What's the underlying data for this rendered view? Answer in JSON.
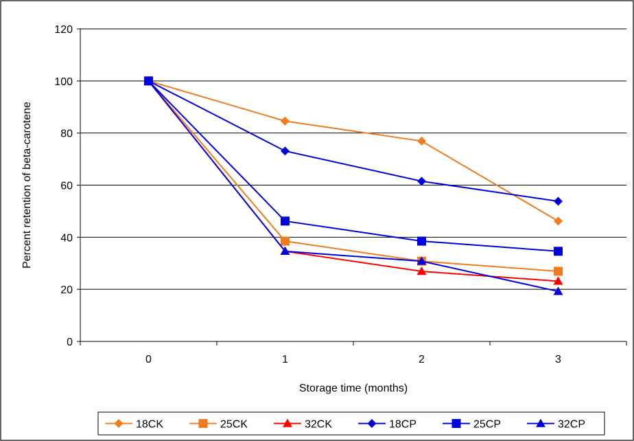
{
  "chart_data": {
    "type": "line",
    "title": "",
    "xlabel": "Storage time (months)",
    "ylabel": "Percent retention of beta-carotene",
    "categories": [
      "0",
      "1",
      "2",
      "3"
    ],
    "ylim": [
      0,
      120
    ],
    "yticks": [
      0,
      20,
      40,
      60,
      80,
      100,
      120
    ],
    "grid": "horizontal",
    "legend_position": "bottom",
    "series": [
      {
        "name": "18CK",
        "color": "#F07C1E",
        "marker": "diamond",
        "values": [
          100,
          84.6,
          76.9,
          46.2
        ]
      },
      {
        "name": "25CK",
        "color": "#F07C1E",
        "marker": "square",
        "values": [
          100,
          38.5,
          30.8,
          26.9
        ]
      },
      {
        "name": "32CK",
        "color": "#FF0000",
        "marker": "triangle",
        "values": [
          100,
          34.6,
          26.9,
          23.1
        ]
      },
      {
        "name": "18CP",
        "color": "#0000DD",
        "marker": "diamond",
        "values": [
          100,
          73.1,
          61.5,
          53.8
        ]
      },
      {
        "name": "25CP",
        "color": "#0000DD",
        "marker": "square",
        "values": [
          100,
          46.2,
          38.5,
          34.6
        ]
      },
      {
        "name": "32CP",
        "color": "#0000DD",
        "marker": "triangle",
        "values": [
          100,
          34.6,
          30.8,
          19.2
        ]
      }
    ]
  }
}
